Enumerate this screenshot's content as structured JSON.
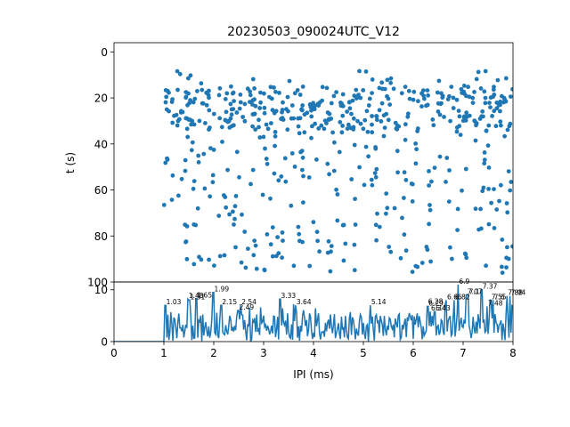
{
  "chart_data": [
    {
      "type": "scatter",
      "title": "20230503_090024UTC_V12",
      "ylabel": "t (s)",
      "xlim": [
        0,
        8
      ],
      "ylim": [
        100,
        -4
      ],
      "y_inverted": true,
      "yticks": [
        0,
        20,
        40,
        60,
        80,
        100
      ],
      "color": "#1f77b4",
      "point_count": 600,
      "x_range": [
        1.0,
        8.0
      ],
      "y_range": [
        0,
        96
      ]
    },
    {
      "type": "line",
      "xlabel": "IPI (ms)",
      "xlim": [
        0,
        8
      ],
      "ylim": [
        0,
        11.5
      ],
      "xticks": [
        0,
        1,
        2,
        3,
        4,
        5,
        6,
        7,
        8
      ],
      "yticks": [
        0,
        10
      ],
      "color": "#1f77b4",
      "peaks": [
        {
          "x": 1.03,
          "y": 7.0,
          "label": "1.03"
        },
        {
          "x": 1.48,
          "y": 8.2,
          "label": "1.48"
        },
        {
          "x": 1.51,
          "y": 8.0,
          "label": "1.51"
        },
        {
          "x": 1.65,
          "y": 8.3,
          "label": "1.65"
        },
        {
          "x": 1.99,
          "y": 9.5,
          "label": "1.99"
        },
        {
          "x": 2.15,
          "y": 7.0,
          "label": "2.15"
        },
        {
          "x": 2.49,
          "y": 6.0,
          "label": "2.49"
        },
        {
          "x": 2.54,
          "y": 7.0,
          "label": "2.54"
        },
        {
          "x": 3.33,
          "y": 8.2,
          "label": "3.33"
        },
        {
          "x": 3.64,
          "y": 7.0,
          "label": "3.64"
        },
        {
          "x": 5.14,
          "y": 7.0,
          "label": "5.14"
        },
        {
          "x": 6.28,
          "y": 7.1,
          "label": "6.28"
        },
        {
          "x": 6.29,
          "y": 6.8,
          "label": "6.29"
        },
        {
          "x": 6.34,
          "y": 5.8,
          "label": "6.34"
        },
        {
          "x": 6.43,
          "y": 5.8,
          "label": "6.43"
        },
        {
          "x": 6.66,
          "y": 8.0,
          "label": "6.66"
        },
        {
          "x": 6.82,
          "y": 8.0,
          "label": "6.82"
        },
        {
          "x": 6.9,
          "y": 11.0,
          "label": "6.9"
        },
        {
          "x": 7.07,
          "y": 9.0,
          "label": "7.07"
        },
        {
          "x": 7.1,
          "y": 9.0,
          "label": "7.1"
        },
        {
          "x": 7.37,
          "y": 10.0,
          "label": "7.37"
        },
        {
          "x": 7.48,
          "y": 6.8,
          "label": "7.48"
        },
        {
          "x": 7.55,
          "y": 8.0,
          "label": "7.55"
        },
        {
          "x": 7.6,
          "y": 8.0,
          "label": "7.6"
        },
        {
          "x": 7.88,
          "y": 8.8,
          "label": "7.88"
        },
        {
          "x": 7.94,
          "y": 8.8,
          "label": "7.94"
        }
      ]
    }
  ]
}
